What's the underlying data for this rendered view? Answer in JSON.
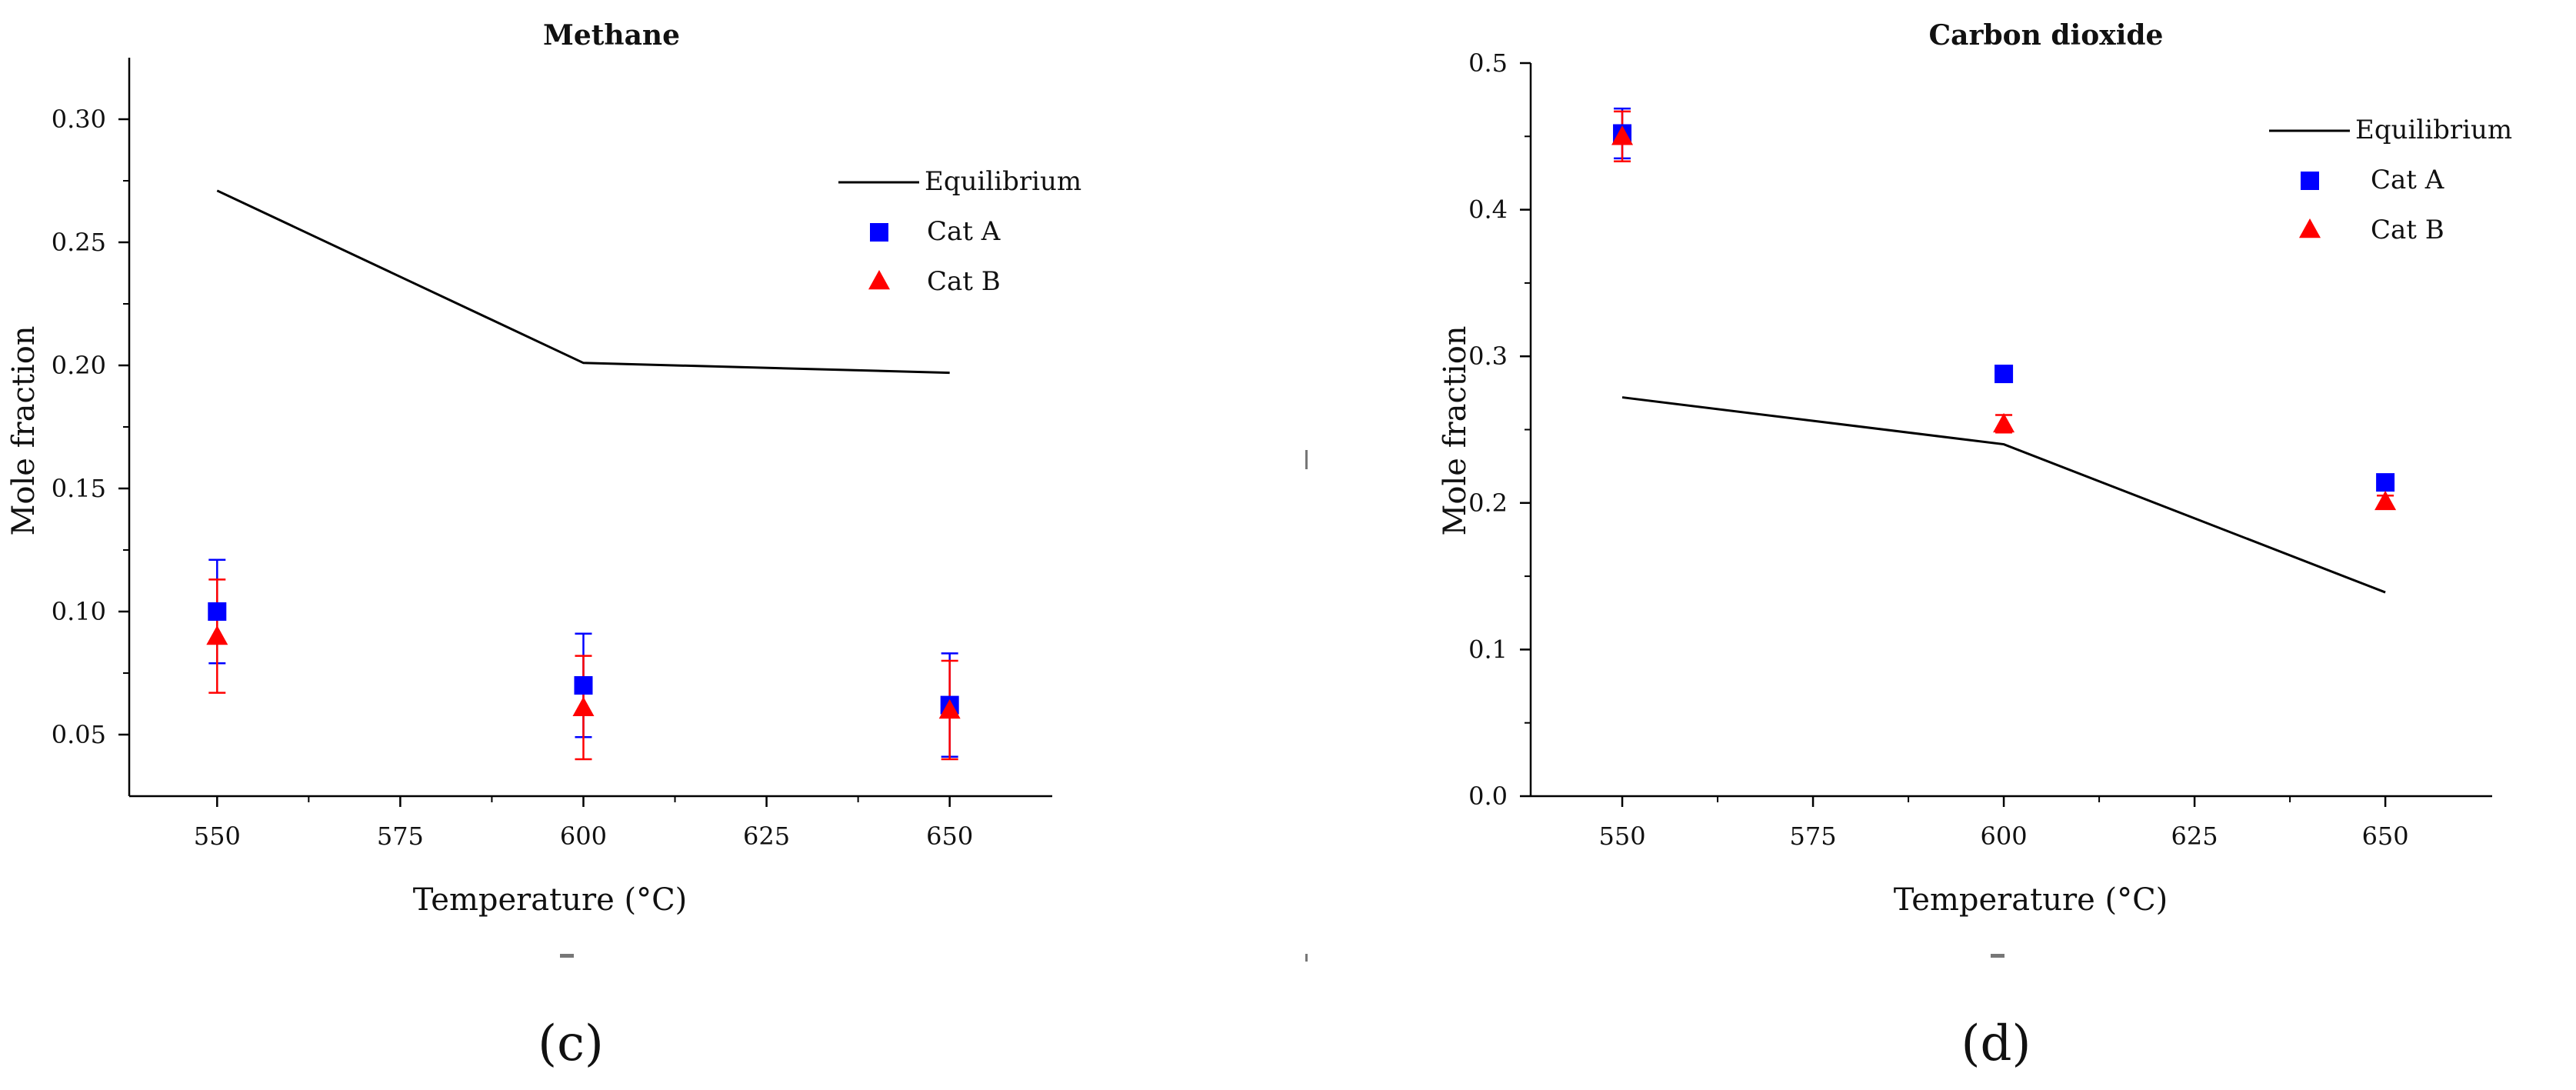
{
  "chart_data": [
    {
      "type": "scatter",
      "panel_label": "(c)",
      "title": "Methane",
      "xlabel": "Temperature (°C)",
      "ylabel": "Mole fraction",
      "xlim": [
        538,
        664
      ],
      "ylim": [
        0.025,
        0.325
      ],
      "xticks": [
        "550",
        "575",
        "600",
        "625",
        "650"
      ],
      "yticks": [
        "0.05",
        "0.10",
        "0.15",
        "0.20",
        "0.25",
        "0.30"
      ],
      "legend_position": "top-right",
      "grid": false,
      "series": [
        {
          "name": "Equilibrium",
          "kind": "line",
          "color": "#000000",
          "x": [
            550,
            600,
            650
          ],
          "y": [
            0.271,
            0.201,
            0.197
          ]
        },
        {
          "name": "Cat A",
          "kind": "marker-square",
          "color": "#0000ff",
          "x": [
            550,
            600,
            650
          ],
          "y": [
            0.1,
            0.07,
            0.062
          ],
          "err": [
            0.021,
            0.021,
            0.021
          ]
        },
        {
          "name": "Cat B",
          "kind": "marker-triangle",
          "color": "#ff0000",
          "x": [
            550,
            600,
            650
          ],
          "y": [
            0.09,
            0.061,
            0.06
          ],
          "err": [
            0.023,
            0.021,
            0.02
          ]
        }
      ]
    },
    {
      "type": "scatter",
      "panel_label": "(d)",
      "title": "Carbon dioxide",
      "xlabel": "Temperature (°C)",
      "ylabel": "Mole fraction",
      "xlim": [
        538,
        664
      ],
      "ylim": [
        0.0,
        0.5
      ],
      "xticks": [
        "550",
        "575",
        "600",
        "625",
        "650"
      ],
      "yticks": [
        "0.0",
        "0.1",
        "0.2",
        "0.3",
        "0.4",
        "0.5"
      ],
      "legend_position": "top-right",
      "grid": false,
      "series": [
        {
          "name": "Equilibrium",
          "kind": "line",
          "color": "#000000",
          "x": [
            550,
            600,
            650
          ],
          "y": [
            0.272,
            0.24,
            0.139
          ]
        },
        {
          "name": "Cat A",
          "kind": "marker-square",
          "color": "#0000ff",
          "x": [
            550,
            600,
            650
          ],
          "y": [
            0.452,
            0.288,
            0.214
          ],
          "err": [
            0.017,
            0.005,
            0.004
          ]
        },
        {
          "name": "Cat B",
          "kind": "marker-triangle",
          "color": "#ff0000",
          "x": [
            550,
            600,
            650
          ],
          "y": [
            0.45,
            0.254,
            0.201
          ],
          "err": [
            0.017,
            0.006,
            0.004
          ]
        }
      ]
    }
  ]
}
